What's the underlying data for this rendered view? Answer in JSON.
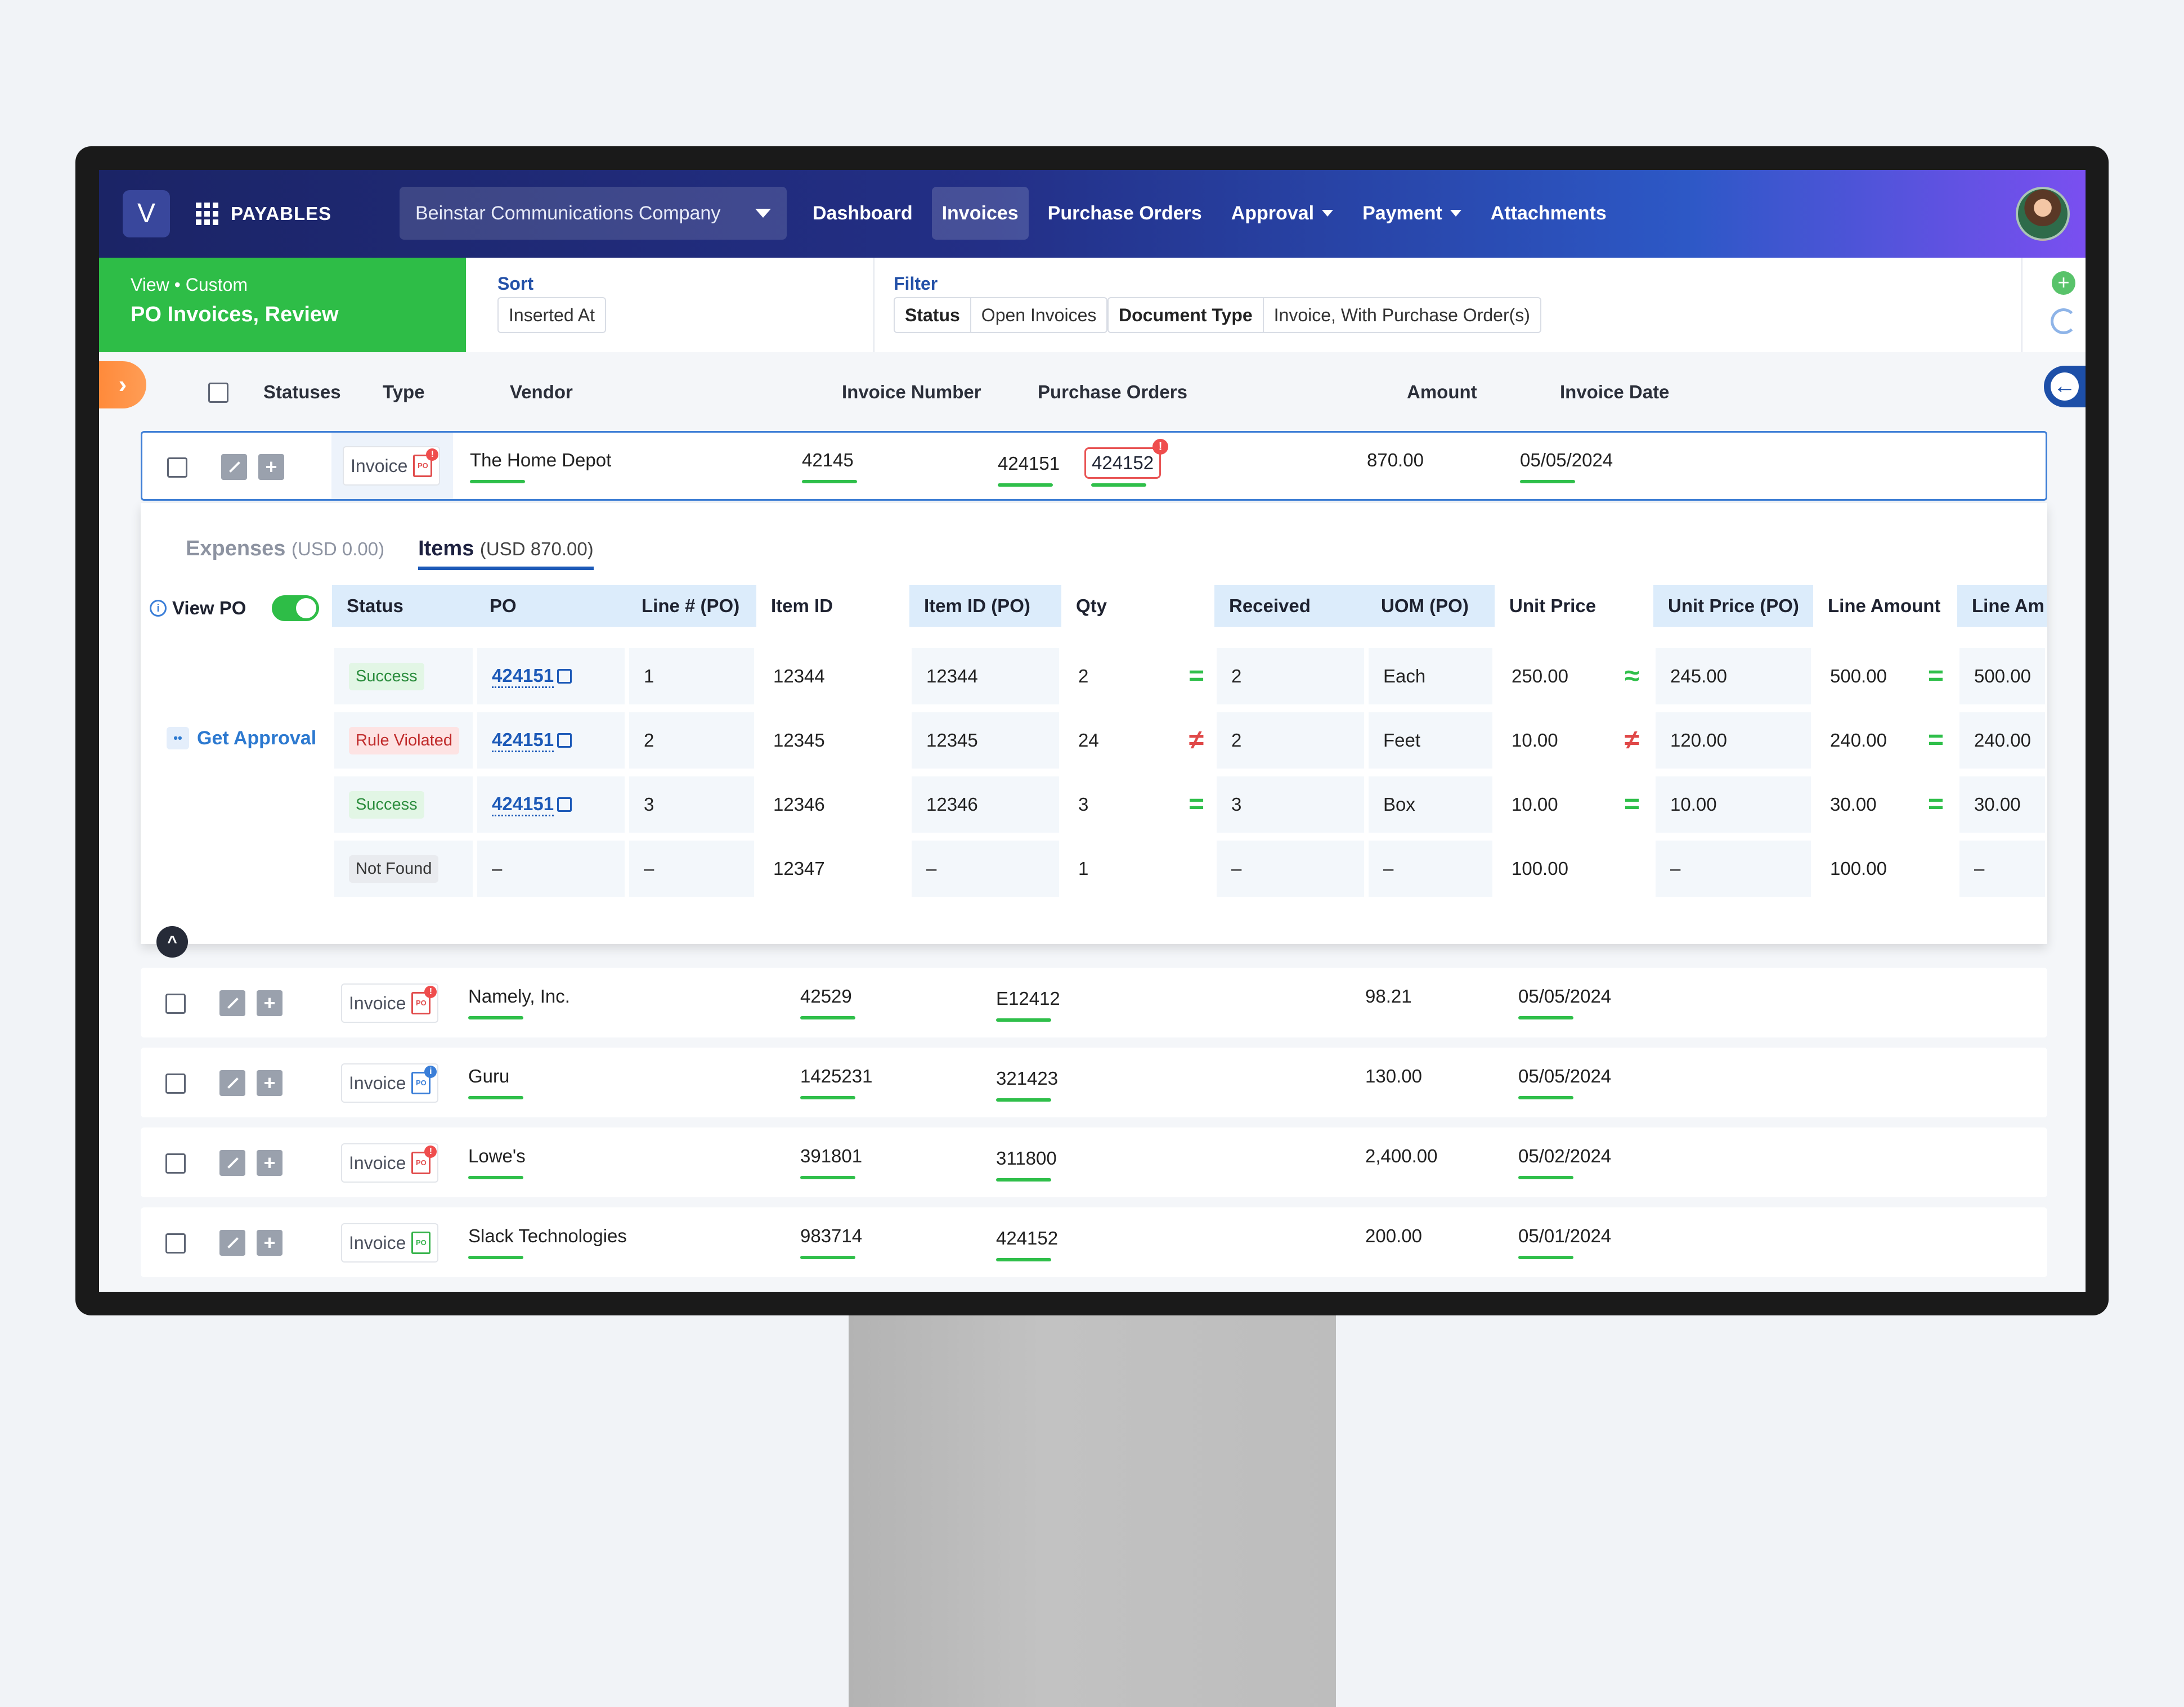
{
  "app": {
    "logo_letter": "V",
    "name": "PAYABLES"
  },
  "company": "Beinstar Communications Company",
  "nav": [
    {
      "label": "Dashboard",
      "active": false,
      "dropdown": false
    },
    {
      "label": "Invoices",
      "active": true,
      "dropdown": false
    },
    {
      "label": "Purchase Orders",
      "active": false,
      "dropdown": false
    },
    {
      "label": "Approval",
      "active": false,
      "dropdown": true
    },
    {
      "label": "Payment",
      "active": false,
      "dropdown": true
    },
    {
      "label": "Attachments",
      "active": false,
      "dropdown": false
    }
  ],
  "view": {
    "subtitle": "View • Custom",
    "title": "PO Invoices, Review"
  },
  "sort": {
    "label": "Sort",
    "value": "Inserted At"
  },
  "filter": {
    "label": "Filter",
    "status_key": "Status",
    "status_value": "Open Invoices",
    "doctype_key": "Document Type",
    "doctype_value": "Invoice, With Purchase Order(s)"
  },
  "table": {
    "headers": {
      "statuses": "Statuses",
      "type": "Type",
      "vendor": "Vendor",
      "invoice_number": "Invoice Number",
      "purchase_orders": "Purchase Orders",
      "amount": "Amount",
      "invoice_date": "Invoice Date"
    },
    "rows": [
      {
        "type": "Invoice",
        "icon": "po-alert",
        "vendor": "The Home Depot",
        "invoice_number": "42145",
        "po1": "424151",
        "po2": "424152",
        "amount": "870.00",
        "date": "05/05/2024"
      },
      {
        "type": "Invoice",
        "icon": "po-alert",
        "vendor": "Namely, Inc.",
        "invoice_number": "42529",
        "po1": "E12412",
        "amount": "98.21",
        "date": "05/05/2024"
      },
      {
        "type": "Invoice",
        "icon": "po-info",
        "vendor": "Guru",
        "invoice_number": "1425231",
        "po1": "321423",
        "amount": "130.00",
        "date": "05/05/2024"
      },
      {
        "type": "Invoice",
        "icon": "po-alert",
        "vendor": "Lowe's",
        "invoice_number": "391801",
        "po1": "311800",
        "amount": "2,400.00",
        "date": "05/02/2024"
      },
      {
        "type": "Invoice",
        "icon": "po-ok",
        "vendor": "Slack Technologies",
        "invoice_number": "983714",
        "po1": "424152",
        "amount": "200.00",
        "date": "05/01/2024"
      }
    ]
  },
  "detail": {
    "tabs": [
      {
        "label": "Expenses",
        "sub": "(USD 0.00)",
        "active": false
      },
      {
        "label": "Items",
        "sub": "(USD 870.00)",
        "active": true
      }
    ],
    "view_po": "View PO",
    "get_approval": "Get Approval",
    "headers": [
      "Status",
      "PO",
      "Line # (PO)",
      "Item ID",
      "Item ID (PO)",
      "Qty",
      "Received",
      "UOM (PO)",
      "Unit Price",
      "Unit Price (PO)",
      "Line Amount",
      "Line Am"
    ],
    "lines": [
      {
        "status": "Success",
        "po": "424151",
        "line": "1",
        "item": "12344",
        "item_po": "12344",
        "qty": "2",
        "qty_cmp": "=",
        "received": "2",
        "uom": "Each",
        "price": "250.00",
        "price_cmp": "≈",
        "price_po": "245.00",
        "amount": "500.00",
        "amt_cmp": "=",
        "amount_po": "500.00"
      },
      {
        "status": "Rule Violated",
        "po": "424151",
        "line": "2",
        "item": "12345",
        "item_po": "12345",
        "qty": "24",
        "qty_cmp": "≠",
        "received": "2",
        "uom": "Feet",
        "price": "10.00",
        "price_cmp": "≠",
        "price_po": "120.00",
        "amount": "240.00",
        "amt_cmp": "=",
        "amount_po": "240.00"
      },
      {
        "status": "Success",
        "po": "424151",
        "line": "3",
        "item": "12346",
        "item_po": "12346",
        "qty": "3",
        "qty_cmp": "=",
        "received": "3",
        "uom": "Box",
        "price": "10.00",
        "price_cmp": "=",
        "price_po": "10.00",
        "amount": "30.00",
        "amt_cmp": "=",
        "amount_po": "30.00"
      },
      {
        "status": "Not Found",
        "po": "–",
        "line": "–",
        "item": "12347",
        "item_po": "–",
        "qty": "1",
        "qty_cmp": "",
        "received": "–",
        "uom": "–",
        "price": "100.00",
        "price_cmp": "",
        "price_po": "–",
        "amount": "100.00",
        "amt_cmp": "",
        "amount_po": "–"
      }
    ]
  },
  "colors": {
    "accent_green": "#2ebd47",
    "nav_start": "#1b2466",
    "nav_end": "#7a4ff0",
    "link_blue": "#1d5ab8",
    "error_red": "#e04848"
  }
}
